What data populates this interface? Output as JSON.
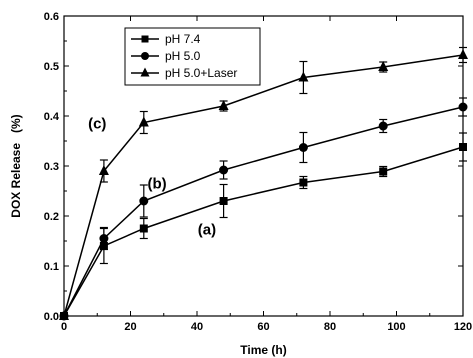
{
  "chart_data": {
    "type": "line",
    "xlabel": "Time (h)",
    "ylabel": "DOX Release   (%)",
    "xlim": [
      0,
      120
    ],
    "ylim": [
      0,
      0.6
    ],
    "xticks": [
      "0",
      "20",
      "40",
      "60",
      "80",
      "100",
      "120"
    ],
    "yticks": [
      "0.0",
      "0.1",
      "0.2",
      "0.3",
      "0.4",
      "0.5",
      "0.6"
    ],
    "grid": false,
    "legend_position": "top-left",
    "x": [
      0,
      12,
      24,
      48,
      72,
      96,
      120
    ],
    "series": [
      {
        "name": "pH 7.4",
        "marker": "square",
        "values": [
          0,
          0.14,
          0.175,
          0.23,
          0.267,
          0.289,
          0.338
        ],
        "errors": [
          0,
          0.035,
          0.02,
          0.033,
          0.012,
          0.01,
          0.028
        ]
      },
      {
        "name": "pH 5.0",
        "marker": "circle",
        "values": [
          0,
          0.155,
          0.23,
          0.292,
          0.337,
          0.38,
          0.418
        ],
        "errors": [
          0,
          0.022,
          0.032,
          0.018,
          0.03,
          0.013,
          0.018
        ]
      },
      {
        "name": "pH 5.0+Laser",
        "marker": "triangle",
        "values": [
          0,
          0.29,
          0.387,
          0.42,
          0.477,
          0.498,
          0.522
        ],
        "errors": [
          0,
          0.022,
          0.022,
          0.01,
          0.032,
          0.01,
          0.015
        ]
      }
    ],
    "annotations": [
      {
        "text": "(a)",
        "x": 43,
        "y": 0.163
      },
      {
        "text": "(b)",
        "x": 28,
        "y": 0.255
      },
      {
        "text": "(c)",
        "x": 10,
        "y": 0.375
      }
    ]
  }
}
